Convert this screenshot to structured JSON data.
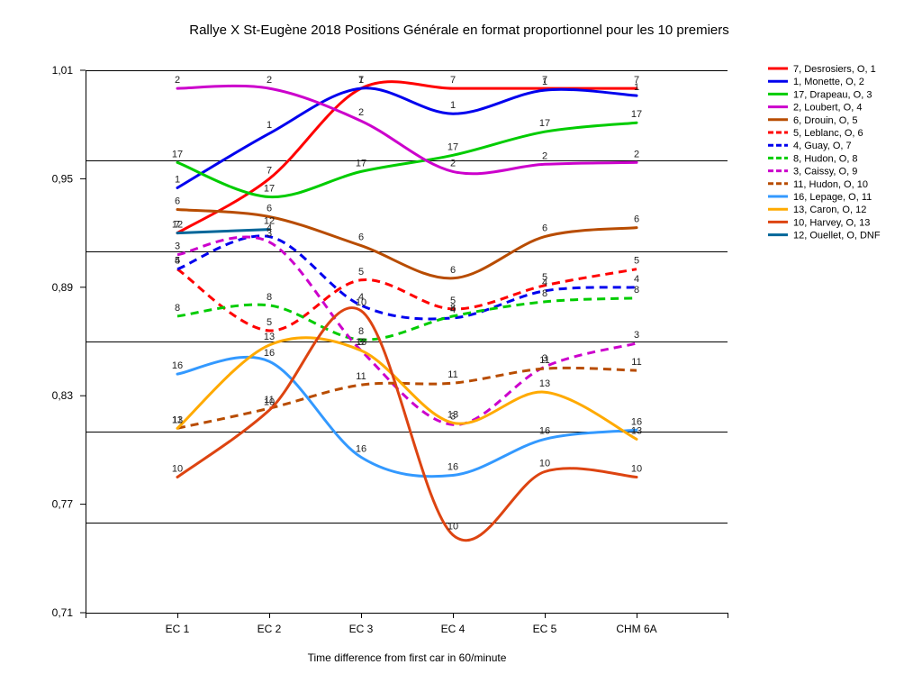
{
  "chart_data": {
    "type": "line",
    "title": "Rallye X St-Eugène 2018  Positions Générale en format proportionnel pour les 10 premiers",
    "xlabel": "Time difference from first car in 60/minute",
    "ylabel": "",
    "categories": [
      "EC 1",
      "EC 2",
      "EC 3",
      "EC 4",
      "EC 5",
      "CHM 6A"
    ],
    "ylim": [
      0.71,
      1.01
    ],
    "yticks": [
      "0,71",
      "0,77",
      "0,83",
      "0,89",
      "0,95",
      "1,01"
    ],
    "grid": true,
    "legend_position": "right",
    "series": [
      {
        "name": "7, Desrosiers, O, 1",
        "label": "7",
        "color": "#ff0000",
        "dash": false,
        "values": [
          0.92,
          0.95,
          1.0,
          1.0,
          1.0,
          1.0
        ]
      },
      {
        "name": "1, Monette, O, 2",
        "label": "1",
        "color": "#0000ee",
        "dash": false,
        "values": [
          0.945,
          0.975,
          1.0,
          0.986,
          0.999,
          0.996
        ]
      },
      {
        "name": "17, Drapeau, O, 3",
        "label": "17",
        "color": "#00cc00",
        "dash": false,
        "values": [
          0.959,
          0.94,
          0.954,
          0.963,
          0.976,
          0.981
        ]
      },
      {
        "name": "2, Loubert, O, 4",
        "label": "2",
        "color": "#cc00cc",
        "dash": false,
        "values": [
          1.0,
          1.0,
          0.982,
          0.954,
          0.958,
          0.959
        ]
      },
      {
        "name": "6, Drouin, O, 5",
        "label": "6",
        "color": "#b84c00",
        "dash": false,
        "values": [
          0.933,
          0.929,
          0.913,
          0.895,
          0.918,
          0.923
        ]
      },
      {
        "name": "5, Leblanc, O, 6",
        "label": "5",
        "color": "#ff0000",
        "dash": true,
        "values": [
          0.9,
          0.866,
          0.894,
          0.878,
          0.891,
          0.9
        ]
      },
      {
        "name": "4, Guay, O, 7",
        "label": "4",
        "color": "#0000ee",
        "dash": true,
        "values": [
          0.9,
          0.918,
          0.88,
          0.873,
          0.888,
          0.89
        ]
      },
      {
        "name": "8, Hudon, O, 8",
        "label": "8",
        "color": "#00cc00",
        "dash": true,
        "values": [
          0.874,
          0.88,
          0.861,
          0.874,
          0.882,
          0.884
        ]
      },
      {
        "name": "3, Caissy, O, 9",
        "label": "3",
        "color": "#cc00cc",
        "dash": true,
        "values": [
          0.908,
          0.915,
          0.855,
          0.814,
          0.846,
          0.859
        ]
      },
      {
        "name": "11, Hudon, O, 10",
        "label": "11",
        "color": "#b84c00",
        "dash": true,
        "values": [
          0.812,
          0.823,
          0.836,
          0.837,
          0.845,
          0.844
        ]
      },
      {
        "name": "16, Lepage, O, 11",
        "label": "16",
        "color": "#3399ff",
        "dash": false,
        "values": [
          0.842,
          0.849,
          0.796,
          0.786,
          0.806,
          0.811
        ]
      },
      {
        "name": "13, Caron, O, 12",
        "label": "13",
        "color": "#ffaa00",
        "dash": false,
        "values": [
          0.812,
          0.858,
          0.855,
          0.815,
          0.832,
          0.806
        ]
      },
      {
        "name": "10, Harvey, O, 13",
        "label": "10",
        "color": "#dd4411",
        "dash": false,
        "values": [
          0.785,
          0.822,
          0.877,
          0.753,
          0.788,
          0.785
        ]
      },
      {
        "name": "12, Ouellet, O, DNF",
        "label": "12",
        "color": "#006699",
        "dash": false,
        "values": [
          0.92,
          0.922,
          null,
          null,
          null,
          null
        ]
      }
    ]
  }
}
